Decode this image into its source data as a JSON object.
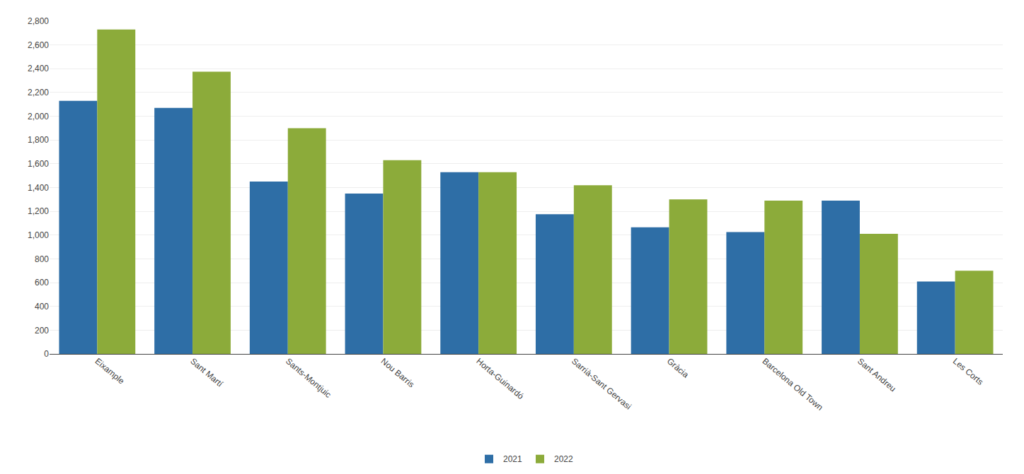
{
  "chart_data": {
    "type": "bar",
    "categories": [
      "Eixample",
      "Sant Martí",
      "Sants-Montjuic",
      "Nou Barris",
      "Horta-Guinardó",
      "Sarrià-Sant Gervasi",
      "Gràcia",
      "Barcelona Old Town",
      "Sant Andreu",
      "Les Corts"
    ],
    "series": [
      {
        "name": "2021",
        "color": "#2E6EA6",
        "values": [
          2130,
          2070,
          1450,
          1350,
          1530,
          1175,
          1065,
          1025,
          1290,
          610
        ]
      },
      {
        "name": "2022",
        "color": "#8CAB3A",
        "values": [
          2730,
          2375,
          1900,
          1630,
          1530,
          1420,
          1300,
          1290,
          1010,
          700
        ]
      }
    ],
    "ylim": [
      0,
      2800
    ],
    "yticks": [
      0,
      200,
      400,
      600,
      800,
      {
        "value": 1000,
        "label": "1,000"
      },
      {
        "value": 1200,
        "label": "1,200"
      },
      {
        "value": 1400,
        "label": "1,400"
      },
      {
        "value": 1600,
        "label": "1,600"
      },
      {
        "value": 1800,
        "label": "1,800"
      },
      {
        "value": 2000,
        "label": "2,000"
      },
      {
        "value": 2200,
        "label": "2,200"
      },
      {
        "value": 2400,
        "label": "2,400"
      },
      {
        "value": 2600,
        "label": "2,600"
      },
      {
        "value": 2800,
        "label": "2,800"
      }
    ],
    "grid": true,
    "legend": "bottom"
  }
}
